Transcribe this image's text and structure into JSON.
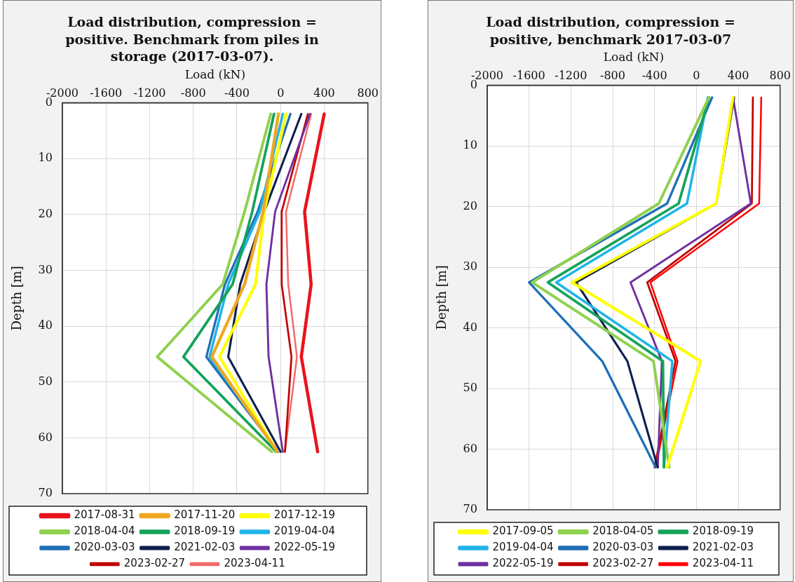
{
  "chart_data": [
    {
      "type": "line",
      "title": "Load distribution, compression = positive. Benchmark from piles in storage (2017-03-07).",
      "xlabel": "Load (kN)",
      "ylabel": "Depth [m]",
      "xlim": [
        -2000,
        800
      ],
      "xticks": [
        -2000,
        -1600,
        -1200,
        -800,
        -400,
        0,
        400,
        800
      ],
      "ylim": [
        70,
        0
      ],
      "yticks": [
        0,
        10,
        20,
        30,
        40,
        50,
        60,
        70
      ],
      "grid": true,
      "legend": "bottom",
      "marker": "none",
      "series": [
        {
          "name": "2017-08-31",
          "color": "#e8141c",
          "x": [
            400,
            220,
            280,
            190,
            340
          ],
          "values": [
            2,
            19.5,
            32.5,
            45.5,
            62.5
          ]
        },
        {
          "name": "2017-11-20",
          "color": "#f0a820",
          "x": [
            -20,
            -160,
            -330,
            -630,
            -30
          ],
          "values": [
            2,
            19.5,
            32.5,
            45.5,
            62.5
          ]
        },
        {
          "name": "2017-12-19",
          "color": "#ffff00",
          "x": [
            50,
            -150,
            -230,
            -560,
            -30
          ],
          "values": [
            2,
            19.5,
            32.5,
            45.5,
            62.5
          ]
        },
        {
          "name": "2018-04-04",
          "color": "#8fd14f",
          "x": [
            -90,
            -330,
            -530,
            -1130,
            -80
          ],
          "values": [
            2,
            19.5,
            32.5,
            45.5,
            62.5
          ]
        },
        {
          "name": "2018-09-19",
          "color": "#14a35a",
          "x": [
            -60,
            -260,
            -440,
            -890,
            -40
          ],
          "values": [
            2,
            19.5,
            32.5,
            45.5,
            62.5
          ]
        },
        {
          "name": "2019-04-04",
          "color": "#1fb4e8",
          "x": [
            20,
            -190,
            -480,
            -650,
            -20
          ],
          "values": [
            2,
            19.5,
            32.5,
            45.5,
            62.5
          ]
        },
        {
          "name": "2020-03-03",
          "color": "#1f6fb8",
          "x": [
            90,
            -210,
            -510,
            -680,
            -20
          ],
          "values": [
            2,
            19.5,
            32.5,
            45.5,
            62.5
          ]
        },
        {
          "name": "2021-02-03",
          "color": "#0f1f4f",
          "x": [
            190,
            -150,
            -370,
            -480,
            0
          ],
          "values": [
            2,
            19.5,
            32.5,
            45.5,
            62.5
          ]
        },
        {
          "name": "2022-05-19",
          "color": "#7030a0",
          "x": [
            270,
            -50,
            -130,
            -110,
            20
          ],
          "values": [
            2,
            19.5,
            32.5,
            45.5,
            62.5
          ]
        },
        {
          "name": "2023-02-27",
          "color": "#c00000",
          "x": [
            250,
            10,
            10,
            100,
            40
          ],
          "values": [
            2,
            19.5,
            32.5,
            45.5,
            62.5
          ]
        },
        {
          "name": "2023-04-11",
          "color": "#f26b6b",
          "x": [
            280,
            50,
            70,
            150,
            40
          ],
          "values": [
            2,
            19.5,
            32.5,
            45.5,
            62.5
          ]
        }
      ]
    },
    {
      "type": "line",
      "title": "Load distribution, compression = positive, benchmark 2017-03-07",
      "xlabel": "Load (kN)",
      "ylabel": "Depth [m]",
      "xlim": [
        -2000,
        800
      ],
      "xticks": [
        -2000,
        -1600,
        -1200,
        -800,
        -400,
        0,
        400,
        800
      ],
      "ylim": [
        70,
        0
      ],
      "yticks": [
        0,
        10,
        20,
        30,
        40,
        50,
        60,
        70
      ],
      "grid": true,
      "legend": "bottom",
      "marker": "none",
      "series": [
        {
          "name": "2017-09-05",
          "color": "#ffff00",
          "x": [
            350,
            190,
            -1190,
            40,
            -280
          ],
          "values": [
            2,
            19.5,
            32.5,
            45.5,
            63
          ]
        },
        {
          "name": "2018-04-05",
          "color": "#8fd14f",
          "x": [
            120,
            -360,
            -1570,
            -410,
            -260
          ],
          "values": [
            2,
            19.5,
            32.5,
            45.5,
            63
          ]
        },
        {
          "name": "2018-09-19",
          "color": "#14a35a",
          "x": [
            120,
            -170,
            -1420,
            -320,
            -310
          ],
          "values": [
            2,
            19.5,
            32.5,
            45.5,
            63
          ]
        },
        {
          "name": "2019-04-04",
          "color": "#1fb4e8",
          "x": [
            110,
            -90,
            -1340,
            -230,
            -310
          ],
          "values": [
            2,
            19.5,
            32.5,
            45.5,
            63
          ]
        },
        {
          "name": "2020-03-03",
          "color": "#1f6fb8",
          "x": [
            150,
            -280,
            -1600,
            -900,
            -390
          ],
          "values": [
            2,
            19.5,
            32.5,
            45.5,
            63
          ]
        },
        {
          "name": "2021-02-03",
          "color": "#0f1f4f",
          "x": [
            360,
            190,
            -1150,
            -660,
            -370
          ],
          "values": [
            2,
            19.5,
            32.5,
            45.5,
            63
          ]
        },
        {
          "name": "2022-05-19",
          "color": "#7030a0",
          "x": [
            350,
            520,
            -630,
            -330,
            -370
          ],
          "values": [
            2,
            19.5,
            32.5,
            45.5,
            63
          ]
        },
        {
          "name": "2023-02-27",
          "color": "#c00000",
          "x": [
            540,
            530,
            -470,
            -200,
            -400
          ],
          "values": [
            2,
            19.5,
            32.5,
            45.5,
            63
          ]
        },
        {
          "name": "2023-04-11",
          "color": "#ff0000",
          "x": [
            620,
            600,
            -440,
            -180,
            -390
          ],
          "values": [
            2,
            19.5,
            32.5,
            45.5,
            63
          ]
        }
      ]
    }
  ]
}
